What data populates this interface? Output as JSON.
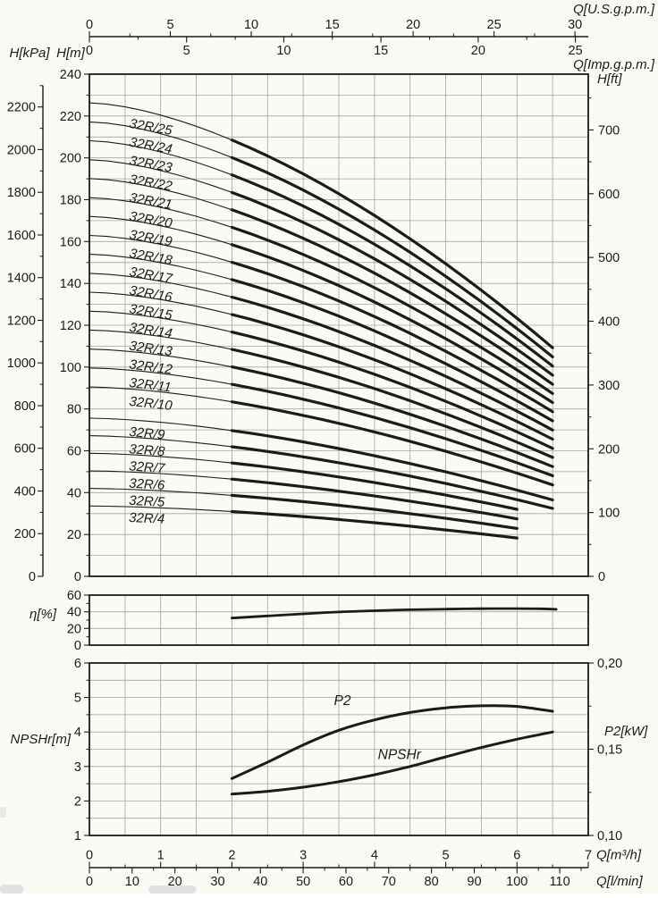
{
  "colors": {
    "background": "#fbfaf5",
    "ink": "#1b1b1b",
    "grid": "#a3a3a3",
    "watermark": "#c5ccc8"
  },
  "axes": {
    "top": {
      "us": {
        "title": "Q[U.S.g.p.m.]",
        "labels": [
          0,
          5,
          10,
          15,
          20,
          25,
          30
        ],
        "minor_step": 2.5,
        "gpm_per_m3h": 4.4029
      },
      "imp": {
        "title": "Q[Imp.g.p.m.]",
        "labels": [
          0,
          5,
          10,
          15,
          20,
          25
        ],
        "minor_step": 2.5,
        "gpm_per_m3h": 3.6662
      }
    },
    "bottom": {
      "m3h": {
        "title": "Q[m³/h]",
        "labels": [
          0,
          1,
          2,
          3,
          4,
          5,
          6,
          7
        ],
        "minor_step": 0.5
      },
      "lmin": {
        "title": "Q[l/min]",
        "labels": [
          0,
          10,
          20,
          30,
          40,
          50,
          60,
          70,
          80,
          90,
          100,
          110
        ],
        "minor_step": 5,
        "lmin_per_m3h": 16.6667
      }
    }
  },
  "chart_data": [
    {
      "id": "head-capacity",
      "type": "line",
      "x_range_m3h": [
        0,
        7
      ],
      "grid_step_x": 0.5,
      "grid_step_y_m": 10,
      "y_left_m": {
        "title": "H[m]",
        "labels": [
          0,
          20,
          40,
          60,
          80,
          100,
          120,
          140,
          160,
          180,
          200,
          220,
          240
        ],
        "minor_step": 10,
        "range": [
          0,
          240
        ]
      },
      "y_left_kpa": {
        "title": "H[kPa]",
        "labels": [
          0,
          200,
          400,
          600,
          800,
          1000,
          1200,
          1400,
          1600,
          1800,
          2000,
          2200
        ],
        "minor_step": 100,
        "m_per_kpa": 0.10197,
        "axis_top_kpa": 2300
      },
      "y_right_ft": {
        "title": "H[ft]",
        "labels": [
          0,
          100,
          200,
          300,
          400,
          500,
          600,
          700
        ],
        "minor_step": 50,
        "m_per_ft": 0.3048
      },
      "curve_model": {
        "formula": "H = H0 * (1 - 0.53*(Q/6.6)^1.6)",
        "droop": 0.53,
        "exponent": 1.6,
        "q_ref": 6.6,
        "bold_from_q": 2
      },
      "curves": [
        {
          "name": "32R/25",
          "h0_m": 226.3,
          "q_end": 6.5
        },
        {
          "name": "32R/24",
          "h0_m": 217.2,
          "q_end": 6.5
        },
        {
          "name": "32R/23",
          "h0_m": 208.2,
          "q_end": 6.5
        },
        {
          "name": "32R/22",
          "h0_m": 199.1,
          "q_end": 6.5
        },
        {
          "name": "32R/21",
          "h0_m": 190.1,
          "q_end": 6.5
        },
        {
          "name": "32R/20",
          "h0_m": 181.0,
          "q_end": 6.5
        },
        {
          "name": "32R/19",
          "h0_m": 172.0,
          "q_end": 6.5
        },
        {
          "name": "32R/18",
          "h0_m": 162.9,
          "q_end": 6.5
        },
        {
          "name": "32R/17",
          "h0_m": 153.9,
          "q_end": 6.5
        },
        {
          "name": "32R/16",
          "h0_m": 144.8,
          "q_end": 6.5
        },
        {
          "name": "32R/15",
          "h0_m": 135.8,
          "q_end": 6.5
        },
        {
          "name": "32R/14",
          "h0_m": 126.7,
          "q_end": 6.5
        },
        {
          "name": "32R/13",
          "h0_m": 117.7,
          "q_end": 6.5
        },
        {
          "name": "32R/12",
          "h0_m": 108.6,
          "q_end": 6.5
        },
        {
          "name": "32R/11",
          "h0_m": 99.6,
          "q_end": 6.5
        },
        {
          "name": "32R/10",
          "h0_m": 90.5,
          "q_end": 6.5
        },
        {
          "name": "32R/9",
          "h0_m": 75.6,
          "q_end": 6.5
        },
        {
          "name": "32R/8",
          "h0_m": 67.2,
          "q_end": 6.5
        },
        {
          "name": "32R/7",
          "h0_m": 58.8,
          "q_end": 6.0
        },
        {
          "name": "32R/6",
          "h0_m": 50.4,
          "q_end": 6.0
        },
        {
          "name": "32R/5",
          "h0_m": 42.0,
          "q_end": 6.0
        },
        {
          "name": "32R/4",
          "h0_m": 33.6,
          "q_end": 6.0
        }
      ]
    },
    {
      "id": "efficiency",
      "type": "line",
      "y_label": "η[%]",
      "y_range": [
        0,
        60
      ],
      "y_labels": [
        0,
        20,
        40,
        60
      ],
      "y_minor": [
        10,
        30,
        50
      ],
      "grid_y": [
        20,
        40
      ],
      "grid_step_x": 0.5,
      "points_q_pct": [
        [
          2,
          32.5
        ],
        [
          2.5,
          35
        ],
        [
          3,
          37.5
        ],
        [
          3.5,
          39.8
        ],
        [
          4,
          41.3
        ],
        [
          4.5,
          42.4
        ],
        [
          5,
          43.2
        ],
        [
          5.5,
          43.7
        ],
        [
          6,
          43.8
        ],
        [
          6.3,
          43.6
        ],
        [
          6.55,
          43
        ]
      ]
    },
    {
      "id": "npshr-p2",
      "type": "line",
      "grid_step_x": 0.5,
      "grid_step_y": 0.5,
      "y_left": {
        "title": "NPSHr[m]",
        "labels": [
          1,
          2,
          3,
          4,
          5,
          6
        ],
        "range": [
          1,
          6
        ],
        "minor_step": 0.5
      },
      "y_right": {
        "title": "P2[kW]",
        "labels": [
          "0,20",
          "0,15",
          "0,10"
        ],
        "values": [
          0.2,
          0.15,
          0.1
        ],
        "minor": [
          0.175,
          0.125
        ],
        "range": [
          0.1,
          0.2
        ]
      },
      "series": [
        {
          "name": "P2",
          "unit": "kW",
          "label": "P2",
          "label_pos": [
            3.55,
            4.78
          ],
          "points_q_kw": [
            [
              2,
              0.133
            ],
            [
              2.5,
              0.1425
            ],
            [
              3,
              0.1525
            ],
            [
              3.5,
              0.161
            ],
            [
              4,
              0.167
            ],
            [
              4.5,
              0.1713
            ],
            [
              5,
              0.174
            ],
            [
              5.5,
              0.1752
            ],
            [
              6,
              0.1748
            ],
            [
              6.5,
              0.172
            ]
          ]
        },
        {
          "name": "NPSHr",
          "unit": "m",
          "label": "NPSHr",
          "label_pos": [
            4.35,
            3.22
          ],
          "points_q_m": [
            [
              2,
              2.2
            ],
            [
              2.5,
              2.28
            ],
            [
              3,
              2.4
            ],
            [
              3.5,
              2.56
            ],
            [
              4,
              2.76
            ],
            [
              4.5,
              3.0
            ],
            [
              5,
              3.28
            ],
            [
              5.5,
              3.55
            ],
            [
              6,
              3.79
            ],
            [
              6.5,
              4.0
            ]
          ]
        }
      ]
    }
  ],
  "corner_titles": {
    "h_kpa": "H[kPa]",
    "h_m": "H[m]",
    "h_ft": "H[ft]"
  }
}
